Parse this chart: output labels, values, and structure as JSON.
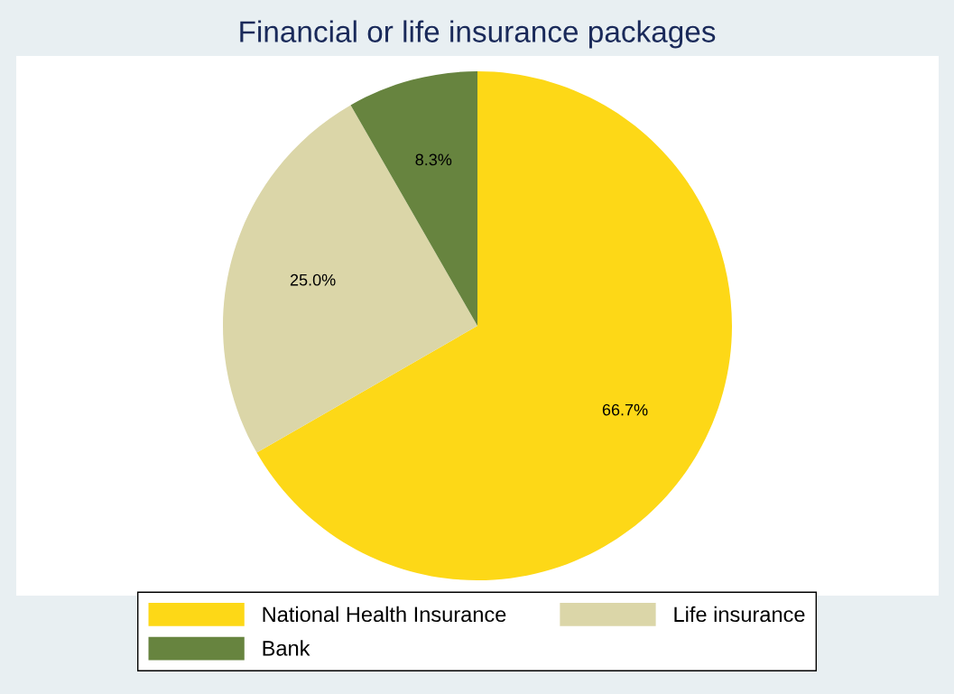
{
  "chart_data": {
    "type": "pie",
    "title": "Financial or life insurance packages",
    "categories": [
      "National Health Insurance",
      "Life insurance",
      "Bank"
    ],
    "values": [
      66.7,
      25.0,
      8.3
    ],
    "colors": [
      "#fdd817",
      "#dbd6a8",
      "#67843f"
    ],
    "value_labels": [
      "66.7%",
      "25.0%",
      "8.3%"
    ],
    "legend": "bottom"
  }
}
